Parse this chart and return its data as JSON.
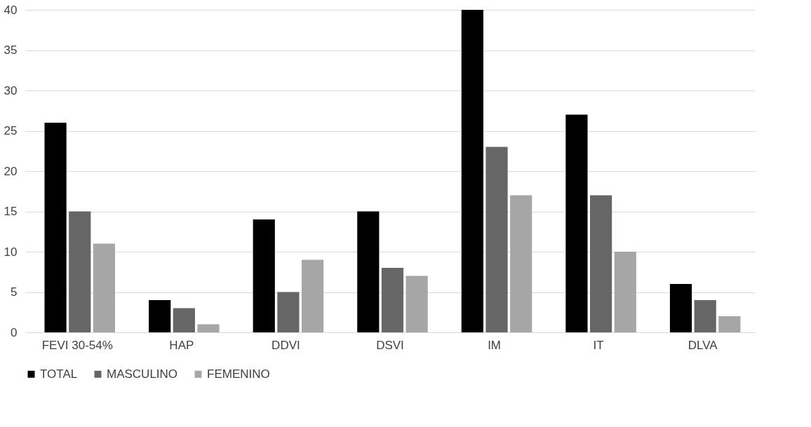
{
  "chart_data": {
    "type": "bar",
    "categories": [
      "FEVI 30-54%",
      "HAP",
      "DDVI",
      "DSVI",
      "IM",
      "IT",
      "DLVA"
    ],
    "series": [
      {
        "name": "TOTAL",
        "color": "#000000",
        "values": [
          26,
          4,
          14,
          15,
          40,
          27,
          6
        ]
      },
      {
        "name": "MASCULINO",
        "color": "#666666",
        "values": [
          15,
          3,
          5,
          8,
          23,
          17,
          4
        ]
      },
      {
        "name": "FEMENINO",
        "color": "#a6a6a6",
        "values": [
          11,
          1,
          9,
          7,
          17,
          10,
          2
        ]
      }
    ],
    "ylim": [
      0,
      40
    ],
    "yticks": [
      0,
      5,
      10,
      15,
      20,
      25,
      30,
      35,
      40
    ],
    "grid": "y",
    "legend": "bottom"
  }
}
